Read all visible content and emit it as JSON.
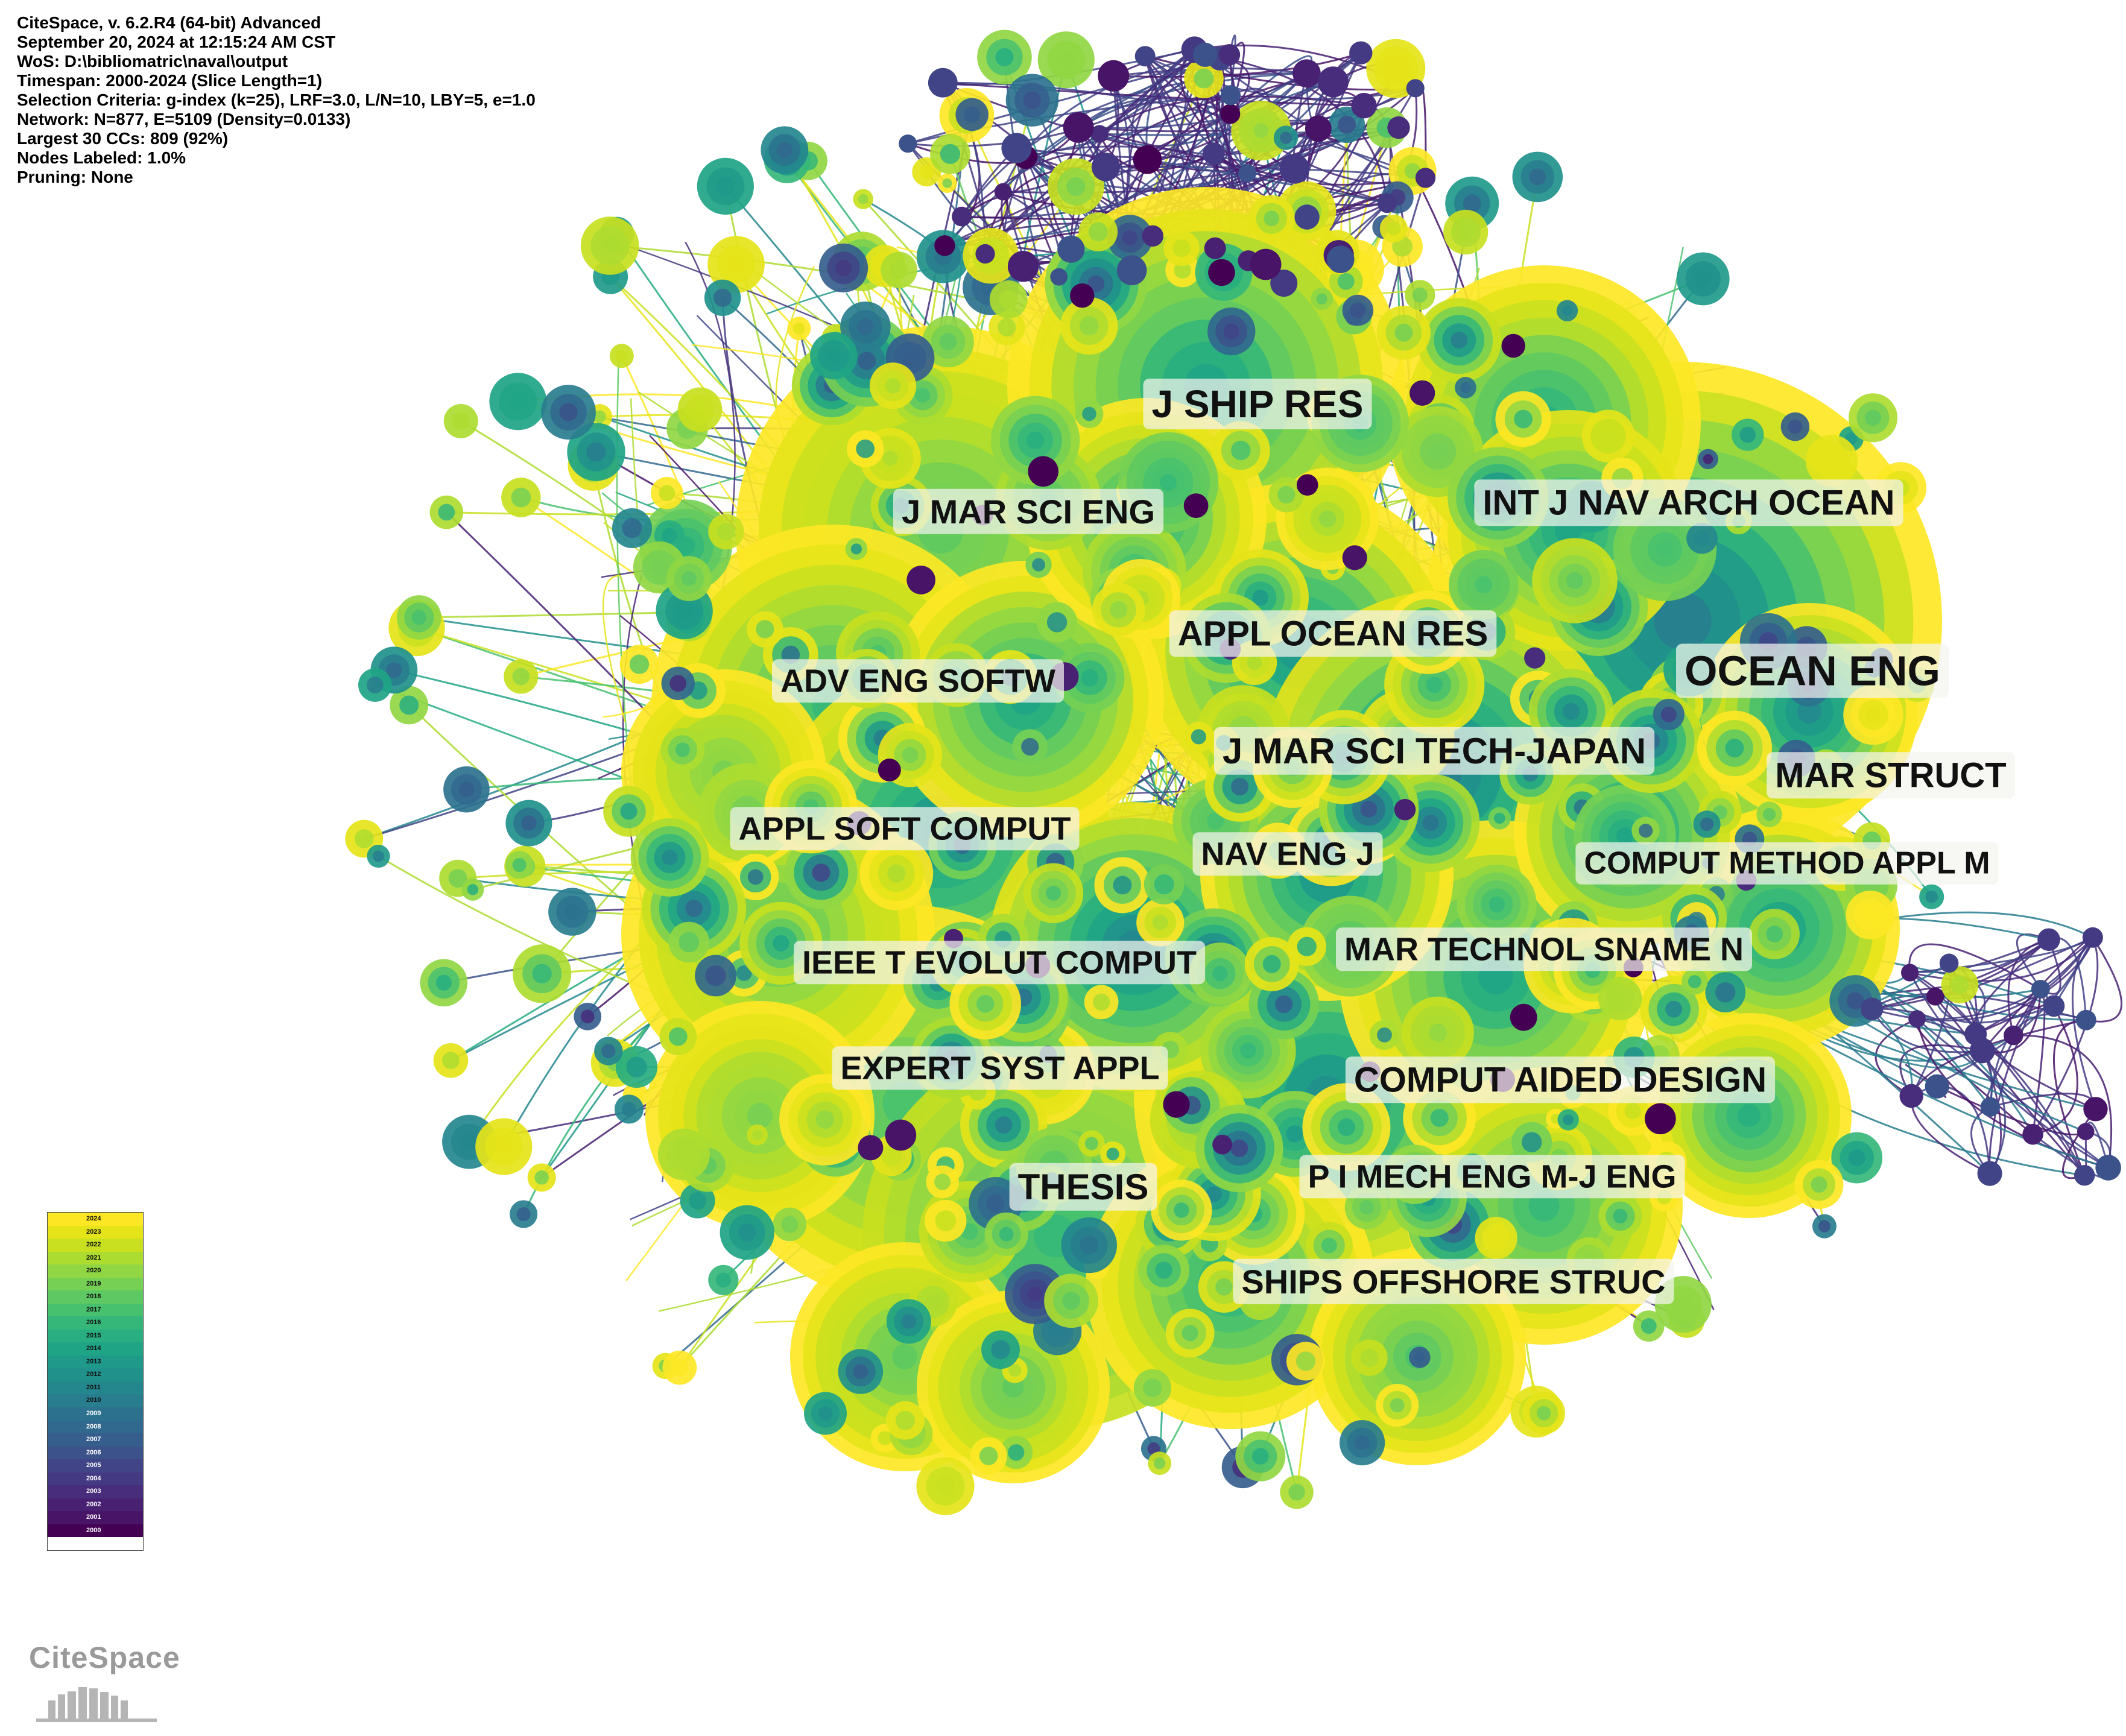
{
  "header_lines": [
    "CiteSpace, v. 6.2.R4 (64-bit) Advanced",
    "September 20, 2024 at 12:15:24 AM CST",
    "WoS: D:\\bibliomatric\\naval\\output",
    "Timespan: 2000-2024 (Slice Length=1)",
    "Selection Criteria: g-index (k=25), LRF=3.0, L/N=10, LBY=5, e=1.0",
    "Network: N=877, E=5109 (Density=0.0133)",
    "Largest 30 CCs: 809 (92%)",
    "Nodes Labeled: 1.0%",
    "Pruning: None"
  ],
  "node_labels": [
    "J SHIP RES",
    "J MAR SCI ENG",
    "INT J NAV ARCH OCEAN",
    "APPL OCEAN RES",
    "OCEAN ENG",
    "ADV ENG SOFTW",
    "J MAR SCI TECH-JAPAN",
    "MAR STRUCT",
    "APPL SOFT COMPUT",
    "NAV ENG J",
    "COMPUT METHOD APPL M",
    "MAR TECHNOL SNAME N",
    "IEEE T EVOLUT COMPUT",
    "EXPERT SYST APPL",
    "COMPUT AIDED DESIGN",
    "THESIS",
    "P I MECH ENG M-J ENG",
    "SHIPS OFFSHORE STRUC"
  ],
  "legend_years": [
    "2024",
    "2023",
    "2022",
    "2021",
    "2020",
    "2019",
    "2018",
    "2017",
    "2016",
    "2015",
    "2014",
    "2013",
    "2012",
    "2011",
    "2010",
    "2009",
    "2008",
    "2007",
    "2006",
    "2005",
    "2004",
    "2003",
    "2002",
    "2001",
    "2000"
  ],
  "legend_colors": [
    "#fde725",
    "#e5e419",
    "#c8e020",
    "#addc30",
    "#90d743",
    "#75d054",
    "#5ec962",
    "#48c16e",
    "#35b779",
    "#28ae80",
    "#20a486",
    "#1f9a8a",
    "#21918c",
    "#24878e",
    "#287d8e",
    "#2c728e",
    "#31688e",
    "#355e8d",
    "#3b528b",
    "#414487",
    "#443983",
    "#472d7b",
    "#482173",
    "#481467",
    "#440154"
  ],
  "logo_text": "CiteSpace"
}
